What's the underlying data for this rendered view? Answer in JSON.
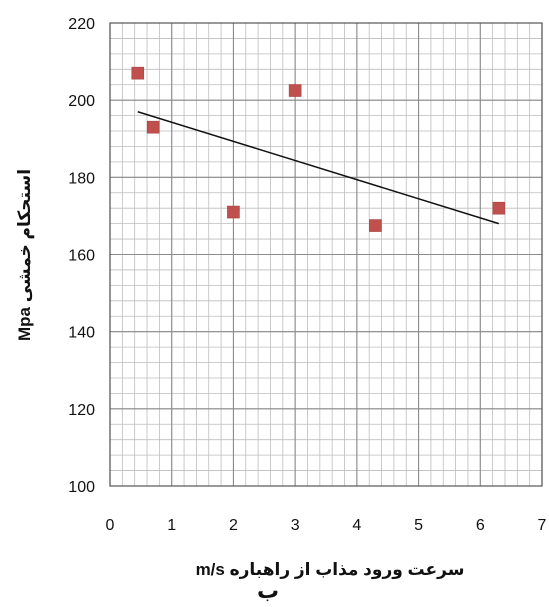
{
  "chart_data": {
    "type": "scatter",
    "title": "",
    "xlabel": "سرعت ورود مذاب از راهباره   m/s",
    "ylabel": "استحکام خمشی   Mpa",
    "panel_label": "ب",
    "xlim": [
      0,
      7
    ],
    "ylim": [
      100,
      220
    ],
    "x_ticks": [
      "0",
      "1",
      "2",
      "3",
      "4",
      "5",
      "6",
      "7"
    ],
    "y_ticks": [
      "100",
      "120",
      "140",
      "160",
      "180",
      "200",
      "220"
    ],
    "grid": true,
    "legend": "none",
    "series": [
      {
        "marker": "square",
        "color": "#c0504d",
        "points": [
          {
            "x": 0.45,
            "y": 207
          },
          {
            "x": 0.7,
            "y": 193
          },
          {
            "x": 2.0,
            "y": 171
          },
          {
            "x": 3.0,
            "y": 202.5
          },
          {
            "x": 4.3,
            "y": 167.5
          },
          {
            "x": 6.3,
            "y": 172
          }
        ]
      }
    ],
    "trendline": {
      "type": "linear",
      "color": "#111111",
      "from": {
        "x": 0.45,
        "y": 197
      },
      "to": {
        "x": 6.3,
        "y": 168
      }
    }
  }
}
